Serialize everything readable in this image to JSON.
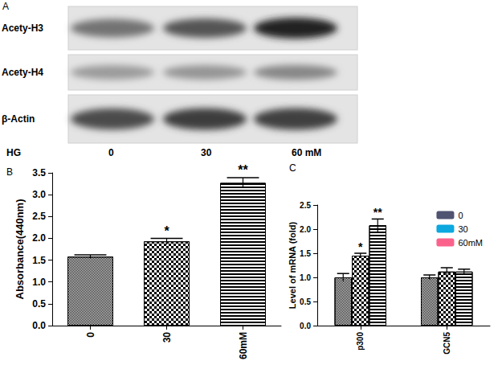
{
  "blot": {
    "label": "A",
    "group_label": "HG",
    "lanes": [
      "0",
      "30",
      "60 mM"
    ],
    "rows": [
      {
        "name": "Acety-H3",
        "intensity": [
          0.55,
          0.7,
          0.95
        ]
      },
      {
        "name": "Acety-H4",
        "intensity": [
          0.35,
          0.38,
          0.45
        ]
      },
      {
        "name": "β-Actin",
        "intensity": [
          0.75,
          0.82,
          0.8
        ]
      }
    ]
  },
  "chart_data": [
    {
      "type": "bar",
      "title": "B",
      "y_label": "Absorbance(440nm)",
      "categories": [
        "0",
        "30",
        "60mM"
      ],
      "values": [
        1.58,
        1.93,
        3.27
      ],
      "errors": [
        0.04,
        0.07,
        0.12
      ],
      "significance": [
        null,
        "*",
        "**"
      ],
      "colors": [
        "#ffffff",
        "#ffffff",
        "#ffffff"
      ],
      "ylim": [
        0,
        3.5
      ],
      "yticks": [
        {
          "value": 0,
          "label": "0.0"
        },
        0.5,
        {
          "value": 1,
          "label": "1.0"
        },
        1.5,
        {
          "value": 2,
          "label": "2.0"
        },
        2.5,
        {
          "value": 3,
          "label": "3.0"
        },
        3.5
      ],
      "grid": false
    },
    {
      "type": "bar",
      "title": "C",
      "y_label": "Level of mRNA (fold)",
      "categories": [
        "p300",
        "GCN5"
      ],
      "series": [
        {
          "name": "0",
          "color": "#ffffff",
          "values": [
            1.0,
            1.0
          ],
          "errors": [
            0.08,
            0.05
          ],
          "significance": [
            null,
            null
          ]
        },
        {
          "name": "30",
          "color": "#ffffff",
          "values": [
            1.45,
            1.12
          ],
          "errors": [
            0.05,
            0.08
          ],
          "significance": [
            "*",
            null
          ]
        },
        {
          "name": "60mM",
          "color": "#ffffff",
          "values": [
            2.08,
            1.12
          ],
          "errors": [
            0.13,
            0.05
          ],
          "significance": [
            "**",
            null
          ]
        }
      ],
      "ylim": [
        0,
        2.5
      ],
      "yticks": [
        {
          "value": 0,
          "label": "0.0"
        },
        0.5,
        {
          "value": 1,
          "label": "1.0"
        },
        1.5,
        {
          "value": 2,
          "label": "2.0"
        },
        2.5
      ],
      "legend": "upper right",
      "grid": false
    }
  ]
}
